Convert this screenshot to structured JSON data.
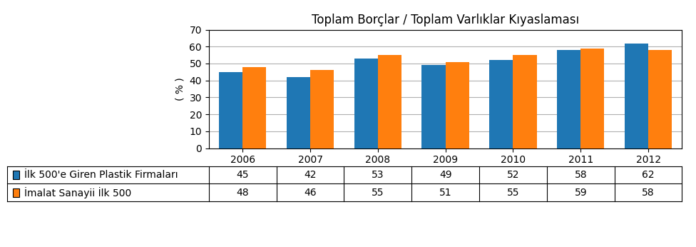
{
  "chart_data": {
    "type": "bar",
    "title": "Toplam Borçlar / Toplam Varlıklar Kıyaslaması",
    "categories": [
      "2006",
      "2007",
      "2008",
      "2009",
      "2010",
      "2011",
      "2012"
    ],
    "series": [
      {
        "name": "İlk 500'e Giren Plastik Firmaları",
        "values": [
          45,
          42,
          53,
          49,
          52,
          58,
          62
        ]
      },
      {
        "name": "İmalat Sanayii İlk 500",
        "values": [
          48,
          46,
          55,
          51,
          55,
          59,
          58
        ]
      }
    ],
    "ylabel": "( % )",
    "ylim": [
      0,
      70
    ],
    "yticks": [
      0,
      10,
      20,
      30,
      40,
      50,
      60,
      70
    ],
    "grid": true,
    "data_labels": true
  }
}
